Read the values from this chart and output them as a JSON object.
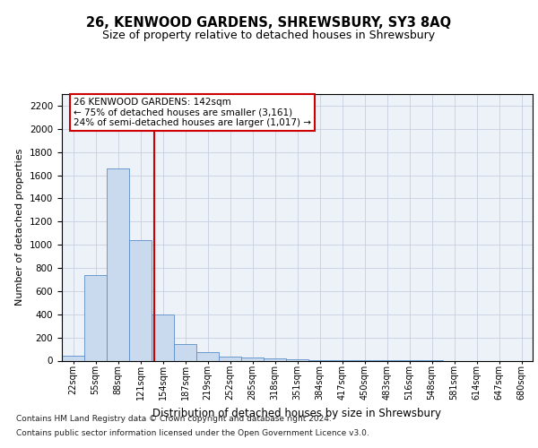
{
  "title": "26, KENWOOD GARDENS, SHREWSBURY, SY3 8AQ",
  "subtitle": "Size of property relative to detached houses in Shrewsbury",
  "xlabel": "Distribution of detached houses by size in Shrewsbury",
  "ylabel": "Number of detached properties",
  "bar_color": "#c9d9ee",
  "bar_edge_color": "#5b8dc8",
  "bin_labels": [
    "22sqm",
    "55sqm",
    "88sqm",
    "121sqm",
    "154sqm",
    "187sqm",
    "219sqm",
    "252sqm",
    "285sqm",
    "318sqm",
    "351sqm",
    "384sqm",
    "417sqm",
    "450sqm",
    "483sqm",
    "516sqm",
    "548sqm",
    "581sqm",
    "614sqm",
    "647sqm",
    "680sqm"
  ],
  "bar_values": [
    40,
    740,
    1660,
    1040,
    400,
    145,
    70,
    35,
    30,
    20,
    10,
    7,
    5,
    3,
    2,
    1,
    1,
    0,
    0,
    0,
    0
  ],
  "ylim": [
    0,
    2300
  ],
  "yticks": [
    0,
    200,
    400,
    600,
    800,
    1000,
    1200,
    1400,
    1600,
    1800,
    2000,
    2200
  ],
  "vline_color": "#cc0000",
  "annotation_line1": "26 KENWOOD GARDENS: 142sqm",
  "annotation_line2": "← 75% of detached houses are smaller (3,161)",
  "annotation_line3": "24% of semi-detached houses are larger (1,017) →",
  "annotation_box_color": "#ffffff",
  "annotation_box_edge": "#cc0000",
  "footnote_line1": "Contains HM Land Registry data © Crown copyright and database right 2024.",
  "footnote_line2": "Contains public sector information licensed under the Open Government Licence v3.0.",
  "grid_color": "#c8d0de",
  "background_color": "#edf1f8",
  "fig_background": "#ffffff",
  "vline_x_bin_index": 3,
  "vline_x_offset": 21
}
